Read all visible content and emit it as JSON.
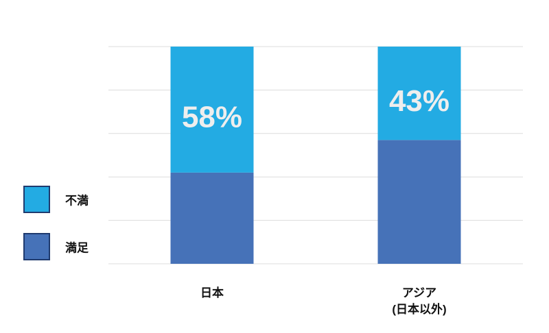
{
  "chart_data": {
    "type": "stacked-bar",
    "categories": [
      "日本",
      "アジア\n(日本以外)"
    ],
    "series": [
      {
        "name": "満足",
        "color": "#4672b8",
        "values": [
          42,
          57
        ]
      },
      {
        "name": "不満",
        "color": "#23abe3",
        "values": [
          58,
          43
        ],
        "value_labels": [
          "58%",
          "43%"
        ]
      }
    ],
    "ylim": [
      0,
      100
    ],
    "yticks": [
      0,
      20,
      40,
      60,
      80,
      100
    ],
    "grid": true
  }
}
